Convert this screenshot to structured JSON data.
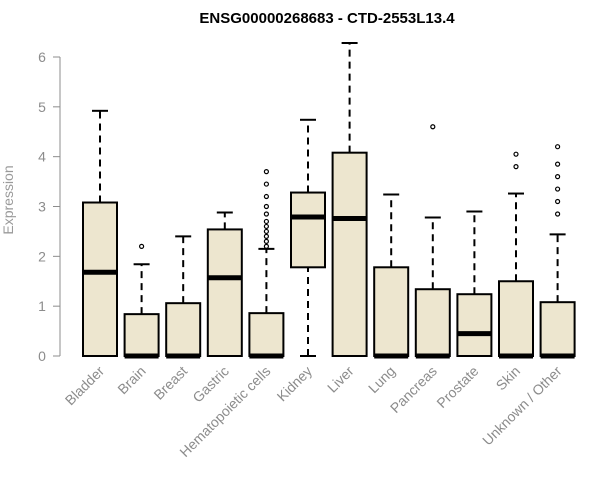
{
  "chart_data": {
    "type": "box",
    "title": "ENSG00000268683 - CTD-2553L13.4",
    "xlabel": "",
    "ylabel": "Expression",
    "ylim": [
      0,
      6.3
    ],
    "yticks": [
      0,
      1,
      2,
      3,
      4,
      5,
      6
    ],
    "grid": false,
    "box_color": "#ede6cf",
    "categories": [
      "Bladder",
      "Brain",
      "Breast",
      "Gastric",
      "Hematopoietic cells",
      "Kidney",
      "Liver",
      "Lung",
      "Pancreas",
      "Prostate",
      "Skin",
      "Unknown / Other"
    ],
    "boxes": [
      {
        "min": 0,
        "q1": 0,
        "median": 1.68,
        "q3": 3.08,
        "max": 4.92,
        "outliers": []
      },
      {
        "min": 0,
        "q1": 0,
        "median": 0,
        "q3": 0.84,
        "max": 1.84,
        "outliers": [
          2.2
        ]
      },
      {
        "min": 0,
        "q1": 0,
        "median": 0,
        "q3": 1.06,
        "max": 2.4,
        "outliers": []
      },
      {
        "min": 0,
        "q1": 0,
        "median": 1.57,
        "q3": 2.54,
        "max": 2.88,
        "outliers": []
      },
      {
        "min": 0,
        "q1": 0,
        "median": 0,
        "q3": 0.86,
        "max": 2.15,
        "outliers": [
          2.2,
          2.3,
          2.4,
          2.5,
          2.6,
          2.7,
          2.85,
          3.0,
          3.2,
          3.45,
          3.7
        ]
      },
      {
        "min": 0,
        "q1": 1.78,
        "median": 2.79,
        "q3": 3.28,
        "max": 4.74,
        "outliers": []
      },
      {
        "min": 0,
        "q1": 0,
        "median": 2.76,
        "q3": 4.08,
        "max": 6.28,
        "outliers": []
      },
      {
        "min": 0,
        "q1": 0,
        "median": 0,
        "q3": 1.78,
        "max": 3.24,
        "outliers": []
      },
      {
        "min": 0,
        "q1": 0,
        "median": 0,
        "q3": 1.34,
        "max": 2.78,
        "outliers": [
          4.6
        ]
      },
      {
        "min": 0,
        "q1": 0,
        "median": 0.45,
        "q3": 1.24,
        "max": 2.9,
        "outliers": []
      },
      {
        "min": 0,
        "q1": 0,
        "median": 0,
        "q3": 1.5,
        "max": 3.26,
        "outliers": [
          3.8,
          4.05
        ]
      },
      {
        "min": 0,
        "q1": 0,
        "median": 0,
        "q3": 1.08,
        "max": 2.44,
        "outliers": [
          2.85,
          3.1,
          3.35,
          3.6,
          3.85,
          4.2
        ]
      }
    ]
  }
}
